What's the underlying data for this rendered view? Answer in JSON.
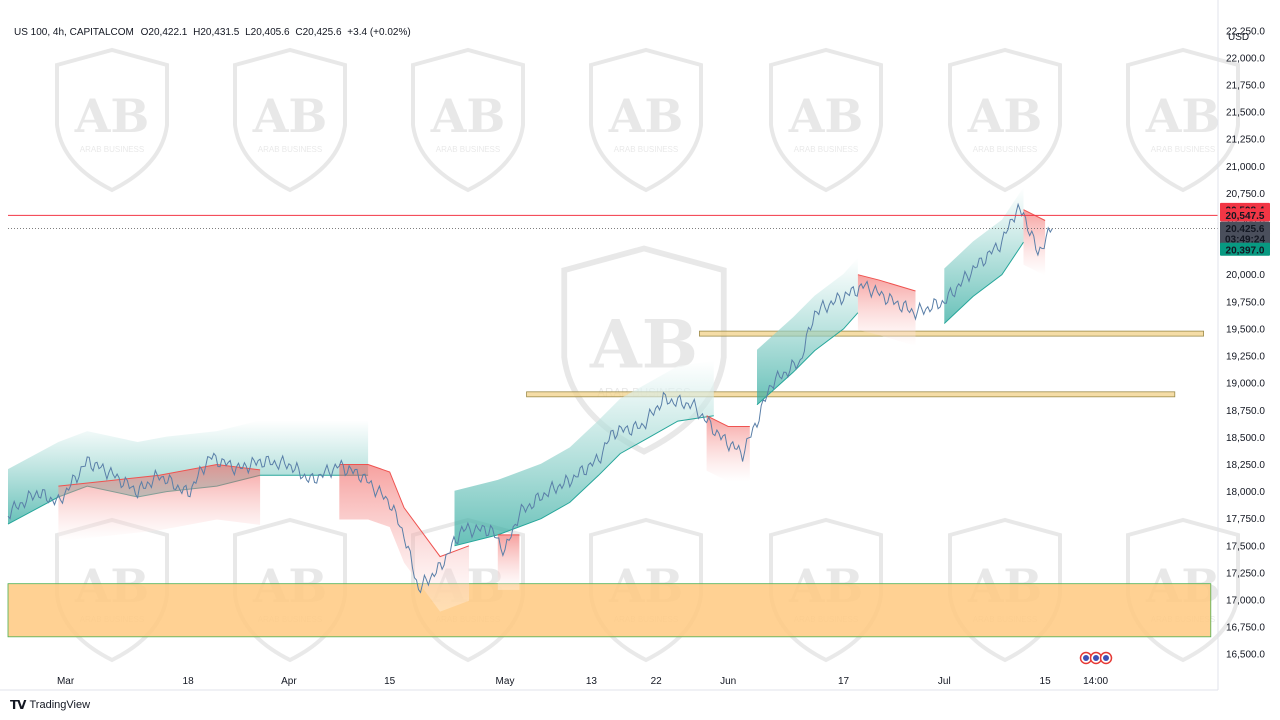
{
  "legend": {
    "symbol": "US 100, 4h, CAPITALCOM",
    "open": "O20,422.1",
    "high": "H20,431.5",
    "low": "L20,405.6",
    "close": "C20,425.6",
    "change": "+3.4 (+0.02%)"
  },
  "watermark": {
    "brand": "ARAB BUSINESS",
    "monogram": "AB"
  },
  "footer": {
    "brand": "TradingView"
  },
  "chart_data": {
    "type": "line",
    "currency": "USD",
    "ylim": [
      16400,
      22350
    ],
    "y_ticks": [
      "22,250.0",
      "22,000.0",
      "21,750.0",
      "21,500.0",
      "21,250.0",
      "21,000.0",
      "20,750.0",
      "20,500.0",
      "20,250.0",
      "20,000.0",
      "19,750.0",
      "19,500.0",
      "19,250.0",
      "19,000.0",
      "18,750.0",
      "18,500.0",
      "18,250.0",
      "18,000.0",
      "17,750.0",
      "17,500.0",
      "17,250.0",
      "17,000.0",
      "16,750.0",
      "16,500.0"
    ],
    "y_tick_values": [
      22250,
      22000,
      21750,
      21500,
      21250,
      21000,
      20750,
      20500,
      20250,
      20000,
      19750,
      19500,
      19250,
      19000,
      18750,
      18500,
      18250,
      18000,
      17750,
      17500,
      17250,
      17000,
      16750,
      16500
    ],
    "x_ticks": [
      "Mar",
      "18",
      "Apr",
      "15",
      "May",
      "13",
      "22",
      "Jun",
      "17",
      "Jul",
      "15",
      "14:00"
    ],
    "x_tick_dates": [
      "2024-03-01",
      "2024-03-18",
      "2024-04-01",
      "2024-04-15",
      "2024-05-01",
      "2024-05-13",
      "2024-05-22",
      "2024-06-01",
      "2024-06-17",
      "2024-07-01",
      "2024-07-15",
      "2024-07-22"
    ],
    "price_path": [
      [
        "2024-02-22",
        17800
      ],
      [
        "2024-02-26",
        17990
      ],
      [
        "2024-02-29",
        17900
      ],
      [
        "2024-03-04",
        18280
      ],
      [
        "2024-03-07",
        18180
      ],
      [
        "2024-03-11",
        18000
      ],
      [
        "2024-03-14",
        18150
      ],
      [
        "2024-03-18",
        17980
      ],
      [
        "2024-03-21",
        18320
      ],
      [
        "2024-03-25",
        18210
      ],
      [
        "2024-03-28",
        18280
      ],
      [
        "2024-04-01",
        18250
      ],
      [
        "2024-04-04",
        18100
      ],
      [
        "2024-04-08",
        18240
      ],
      [
        "2024-04-11",
        18150
      ],
      [
        "2024-04-15",
        17900
      ],
      [
        "2024-04-17",
        17600
      ],
      [
        "2024-04-19",
        17100
      ],
      [
        "2024-04-22",
        17300
      ],
      [
        "2024-04-25",
        17650
      ],
      [
        "2024-04-29",
        17650
      ],
      [
        "2024-05-01",
        17450
      ],
      [
        "2024-05-03",
        17800
      ],
      [
        "2024-05-07",
        18000
      ],
      [
        "2024-05-10",
        18100
      ],
      [
        "2024-05-14",
        18300
      ],
      [
        "2024-05-16",
        18550
      ],
      [
        "2024-05-20",
        18600
      ],
      [
        "2024-05-23",
        18850
      ],
      [
        "2024-05-27",
        18800
      ],
      [
        "2024-05-29",
        18650
      ],
      [
        "2024-05-31",
        18500
      ],
      [
        "2024-06-03",
        18350
      ],
      [
        "2024-06-05",
        18650
      ],
      [
        "2024-06-07",
        19000
      ],
      [
        "2024-06-11",
        19200
      ],
      [
        "2024-06-13",
        19650
      ],
      [
        "2024-06-17",
        19800
      ],
      [
        "2024-06-20",
        19900
      ],
      [
        "2024-06-24",
        19750
      ],
      [
        "2024-06-27",
        19650
      ],
      [
        "2024-07-01",
        19750
      ],
      [
        "2024-07-03",
        19900
      ],
      [
        "2024-07-05",
        20050
      ],
      [
        "2024-07-09",
        20300
      ],
      [
        "2024-07-11",
        20600
      ],
      [
        "2024-07-12",
        20560
      ],
      [
        "2024-07-14",
        20200
      ],
      [
        "2024-07-16",
        20425.6
      ]
    ],
    "cloud_green": [
      [
        [
          "2024-02-22",
          17700
        ],
        [
          "2024-02-29",
          17950
        ],
        [
          "2024-03-04",
          18050
        ],
        [
          "2024-03-11",
          17950
        ],
        [
          "2024-03-15",
          18000
        ],
        [
          "2024-03-22",
          18050
        ],
        [
          "2024-03-28",
          18150
        ],
        [
          "2024-04-04",
          18150
        ],
        [
          "2024-04-12",
          18150
        ]
      ],
      [
        [
          "2024-04-24",
          17500
        ],
        [
          "2024-04-30",
          17600
        ],
        [
          "2024-05-06",
          17750
        ],
        [
          "2024-05-10",
          17900
        ],
        [
          "2024-05-14",
          18150
        ],
        [
          "2024-05-17",
          18350
        ],
        [
          "2024-05-21",
          18500
        ],
        [
          "2024-05-25",
          18650
        ],
        [
          "2024-05-30",
          18700
        ]
      ],
      [
        [
          "2024-06-05",
          18800
        ],
        [
          "2024-06-10",
          19100
        ],
        [
          "2024-06-13",
          19300
        ],
        [
          "2024-06-17",
          19500
        ],
        [
          "2024-06-19",
          19650
        ]
      ],
      [
        [
          "2024-07-01",
          19550
        ],
        [
          "2024-07-05",
          19800
        ],
        [
          "2024-07-09",
          20000
        ],
        [
          "2024-07-12",
          20300
        ]
      ]
    ],
    "cloud_red": [
      [
        [
          "2024-02-29",
          18050
        ],
        [
          "2024-03-07",
          18100
        ],
        [
          "2024-03-14",
          18150
        ],
        [
          "2024-03-22",
          18250
        ],
        [
          "2024-03-28",
          18200
        ]
      ],
      [
        [
          "2024-04-08",
          18250
        ],
        [
          "2024-04-12",
          18250
        ],
        [
          "2024-04-15",
          18180
        ],
        [
          "2024-04-17",
          17850
        ],
        [
          "2024-04-22",
          17400
        ],
        [
          "2024-04-26",
          17500
        ]
      ],
      [
        [
          "2024-04-30",
          17600
        ],
        [
          "2024-05-03",
          17600
        ]
      ],
      [
        [
          "2024-05-29",
          18700
        ],
        [
          "2024-06-01",
          18600
        ],
        [
          "2024-06-04",
          18600
        ]
      ],
      [
        [
          "2024-06-19",
          20000
        ],
        [
          "2024-06-22",
          19950
        ],
        [
          "2024-06-27",
          19850
        ]
      ],
      [
        [
          "2024-07-12",
          20600
        ],
        [
          "2024-07-15",
          20500
        ]
      ]
    ],
    "zones": [
      {
        "type": "supply_demand_box",
        "from": "2024-05-28",
        "to": "2024-08-06",
        "y_low": 19440,
        "y_high": 19480,
        "color": "#f2d28a"
      },
      {
        "type": "supply_demand_box",
        "from": "2024-05-04",
        "to": "2024-08-02",
        "y_low": 18880,
        "y_high": 18920,
        "color": "#f2d28a"
      },
      {
        "type": "support_box",
        "from": "2024-02-22",
        "to": "2024-08-07",
        "y_low": 16660,
        "y_high": 17150,
        "color": "#ffc980"
      }
    ],
    "horizontal_levels": [
      {
        "y": 20547.5,
        "color": "#f23645",
        "style": "solid"
      }
    ],
    "current_price": {
      "y": 20425.6,
      "style": "dotted"
    },
    "price_labels": [
      {
        "text": "20,598.4",
        "y": 20598.4,
        "color": "#f23645"
      },
      {
        "text": "20,547.5",
        "y": 20547.5,
        "color": "#f23645"
      },
      {
        "text": "20,425.6",
        "y": 20425.6,
        "color": "#4a4f5c"
      },
      {
        "text": "03:49:24",
        "y": 20328,
        "color": "#4a4f5c"
      },
      {
        "text": "20,397.0",
        "y": 20230,
        "color": "#089981"
      }
    ],
    "grid": false,
    "legend_position": "top-left"
  }
}
